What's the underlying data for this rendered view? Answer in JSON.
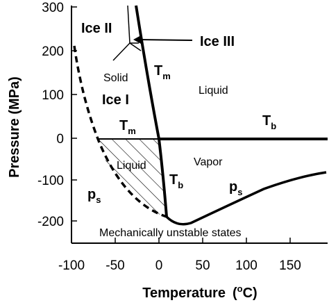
{
  "axes": {
    "x_title_text": "Temperature",
    "x_title_open": "(",
    "x_title_sup": "o",
    "x_title_unit": "C)",
    "y_title": "Pressure (MPa)",
    "x_ticks": [
      "-100",
      "-50",
      "0",
      "50",
      "100",
      "150"
    ],
    "y_ticks": [
      "300",
      "200",
      "100",
      "0",
      "-100",
      "-200"
    ]
  },
  "regions": {
    "ice2": "Ice II",
    "ice3": "Ice III",
    "solid": "Solid",
    "ice1": "Ice I",
    "liquid_upper": "Liquid",
    "liquid_lower": "Liquid",
    "vapor": "Vapor",
    "unstable": "Mechanically unstable states"
  },
  "curves": {
    "tm_main": "T",
    "tm_sub": "m",
    "tb_main": "T",
    "tb_sub": "b",
    "ps_main": "p",
    "ps_sub": "s"
  }
}
